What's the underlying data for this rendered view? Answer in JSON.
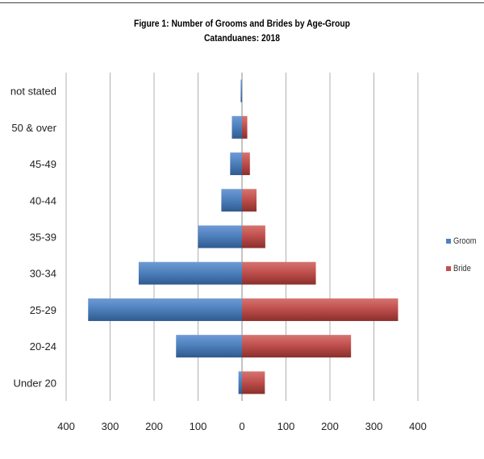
{
  "chart_data": {
    "type": "bar",
    "orientation": "horizontal",
    "title": "Figure 1: Number of Grooms and Brides by Age-Group",
    "subtitle": "Catanduanes: 2018",
    "categories": [
      "Under 20",
      "20-24",
      "25-29",
      "30-34",
      "35-39",
      "40-44",
      "45-49",
      "50 & over",
      "not stated"
    ],
    "series": [
      {
        "name": "Groom",
        "color": "#4f81bd",
        "side": "left",
        "values": [
          8,
          150,
          350,
          235,
          100,
          47,
          27,
          23,
          3
        ]
      },
      {
        "name": "Bride",
        "color": "#c0504d",
        "side": "right",
        "values": [
          52,
          248,
          355,
          168,
          53,
          33,
          18,
          12,
          0
        ]
      }
    ],
    "x_ticks": [
      "400",
      "300",
      "200",
      "100",
      "0",
      "100",
      "200",
      "300",
      "400"
    ],
    "xlim": [
      -400,
      400
    ],
    "grid": "vertical",
    "legend_position": "right"
  }
}
